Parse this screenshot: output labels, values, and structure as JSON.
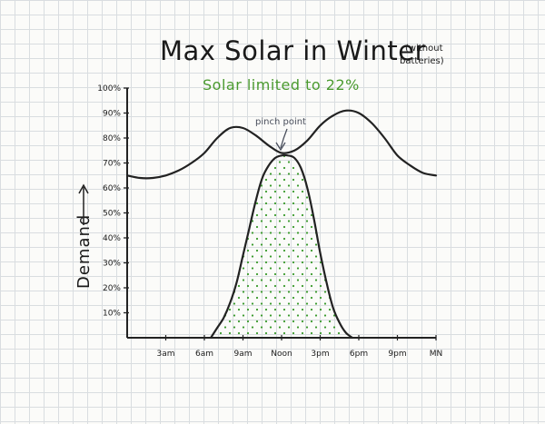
{
  "chart_data": {
    "type": "area",
    "title": "Max Solar in Winter",
    "title_note": [
      "(without",
      "batteries)"
    ],
    "subtitle": "Solar limited to 22%",
    "ylabel": "Demand",
    "yticks": [
      "10%",
      "20%",
      "30%",
      "40%",
      "50%",
      "60%",
      "70%",
      "80%",
      "90%",
      "100%"
    ],
    "xticks": [
      "3am",
      "6am",
      "9am",
      "Noon",
      "3pm",
      "6pm",
      "9pm",
      "MN"
    ],
    "ylim": [
      0,
      100
    ],
    "xlim": [
      0,
      24
    ],
    "grid": true,
    "annotation": "pinch point",
    "series": [
      {
        "kind": "line",
        "x": [
          0,
          1,
          2,
          3,
          4,
          5,
          6,
          7,
          8,
          9,
          10,
          11,
          12,
          13,
          14,
          15,
          16,
          17,
          18,
          19,
          20,
          21,
          22,
          23,
          24
        ],
        "y": [
          65,
          64,
          64,
          65,
          67,
          70,
          74,
          80,
          84,
          84,
          81,
          77,
          74,
          75,
          79,
          85,
          89,
          91,
          90,
          86,
          80,
          73,
          69,
          66,
          65
        ]
      },
      {
        "kind": "area",
        "x": [
          6.5,
          7,
          7.5,
          8,
          8.5,
          9,
          9.5,
          10,
          10.5,
          11,
          11.5,
          12,
          12.5,
          13,
          13.5,
          14,
          14.5,
          15,
          15.5,
          16,
          16.5,
          17,
          17.5
        ],
        "y": [
          0,
          4,
          8,
          14,
          22,
          33,
          44,
          55,
          64,
          69,
          72,
          73,
          73,
          72,
          68,
          60,
          48,
          34,
          22,
          12,
          6,
          2,
          0
        ]
      }
    ],
    "colors": {
      "curve": "#222222",
      "solar_dots": "#3a9a2c",
      "subtitle": "#4a9a2f",
      "annotation": "#4a4f5c"
    }
  }
}
